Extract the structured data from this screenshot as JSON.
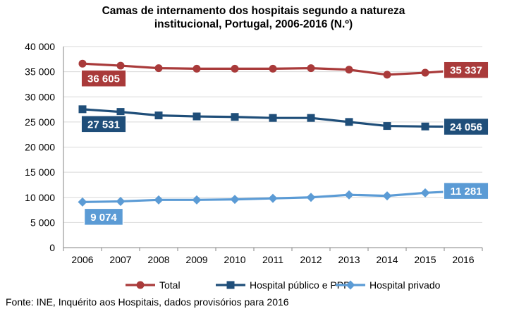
{
  "title_line1": "Camas de internamento  dos hospitais segundo a natureza",
  "title_line2": "institucional, Portugal, 2006-2016  (N.º)",
  "source": "Fonte: INE, Inquérito aos Hospitais, dados provisórios para 2016",
  "chart_data": {
    "type": "line",
    "title": "Camas de internamento  dos hospitais segundo a natureza institucional, Portugal, 2006-2016  (N.º)",
    "xlabel": "",
    "ylabel": "",
    "ylim": [
      0,
      40000
    ],
    "yticks": [
      0,
      5000,
      10000,
      15000,
      20000,
      25000,
      30000,
      35000,
      40000
    ],
    "ytick_labels": [
      "0",
      "5 000",
      "10 000",
      "15 000",
      "20 000",
      "25 000",
      "30 000",
      "35 000",
      "40 000"
    ],
    "grid": true,
    "legend_position": "bottom",
    "categories": [
      "2006",
      "2007",
      "2008",
      "2009",
      "2010",
      "2011",
      "2012",
      "2013",
      "2014",
      "2015",
      "2016"
    ],
    "series": [
      {
        "name": "Total",
        "color": "#a93a3a",
        "marker": "circle",
        "values": [
          36605,
          36200,
          35700,
          35600,
          35600,
          35600,
          35700,
          35400,
          34400,
          34800,
          35337
        ],
        "labels": {
          "first": "36 605",
          "last": "35 337"
        }
      },
      {
        "name": "Hospital público  e PPP",
        "color": "#1f4e79",
        "marker": "square",
        "values": [
          27531,
          27000,
          26300,
          26100,
          26000,
          25800,
          25800,
          25000,
          24200,
          24100,
          24056
        ],
        "labels": {
          "first": "27 531",
          "last": "24 056"
        }
      },
      {
        "name": "Hospital privado",
        "color": "#5b9bd5",
        "marker": "diamond",
        "values": [
          9074,
          9200,
          9500,
          9500,
          9600,
          9800,
          10000,
          10500,
          10300,
          10900,
          11281
        ],
        "labels": {
          "first": "9 074",
          "last": "11 281"
        }
      }
    ]
  }
}
